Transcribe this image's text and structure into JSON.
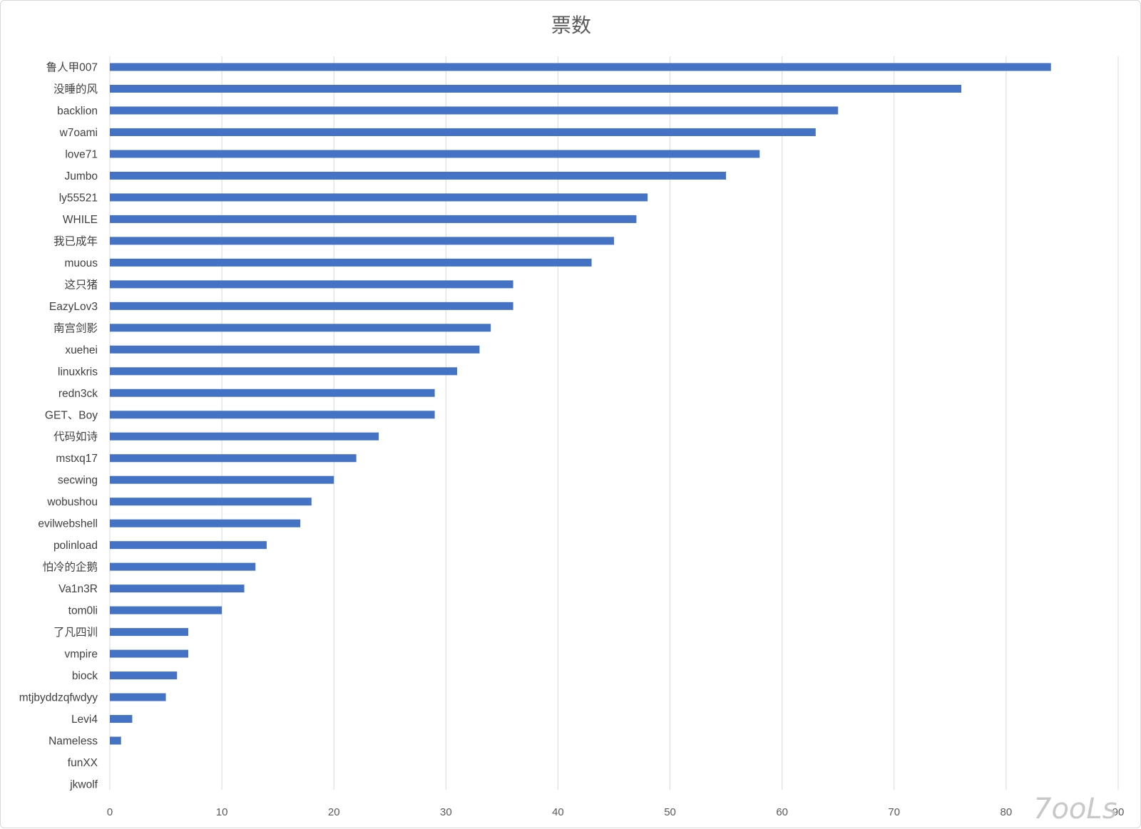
{
  "chart_data": {
    "type": "bar",
    "orientation": "horizontal",
    "title": "票数",
    "xlabel": "",
    "ylabel": "",
    "xlim": [
      0,
      90
    ],
    "x_ticks": [
      0,
      10,
      20,
      30,
      40,
      50,
      60,
      70,
      80,
      90
    ],
    "grid": true,
    "legend": "none",
    "bar_color": "#4472c4",
    "categories": [
      "鲁人甲007",
      "没睡的风",
      "backlion",
      "w7oami",
      "love71",
      "Jumbo",
      "ly55521",
      "WHILE",
      "我已成年",
      "muous",
      "这只猪",
      "EazyLov3",
      "南宫剑影",
      "xuehei",
      "linuxkris",
      "redn3ck",
      "GET、Boy",
      "代码如诗",
      "mstxq17",
      "secwing",
      "wobushou",
      "evilwebshell",
      "polinload",
      "怕冷的企鹅",
      "Va1n3R",
      "tom0li",
      "了凡四训",
      "vmpire",
      "biock",
      "mtjbyddzqfwdyy",
      "Levi4",
      "Nameless",
      "funXX",
      "jkwolf"
    ],
    "values": [
      84,
      76,
      65,
      63,
      58,
      55,
      48,
      47,
      45,
      43,
      36,
      36,
      34,
      33,
      31,
      29,
      29,
      24,
      22,
      20,
      18,
      17,
      14,
      13,
      12,
      10,
      7,
      7,
      6,
      5,
      2,
      1,
      0,
      0
    ]
  },
  "watermark": {
    "text": "7ooLs"
  }
}
